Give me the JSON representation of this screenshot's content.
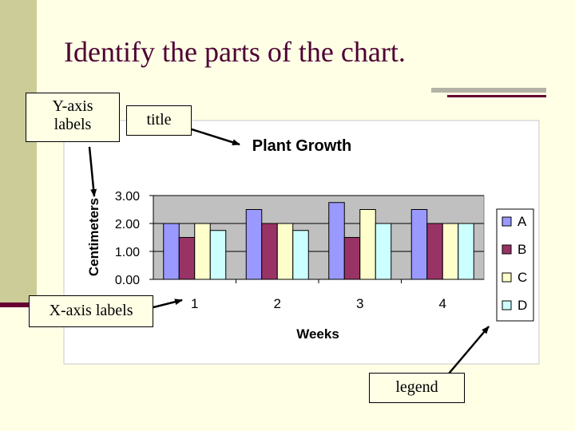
{
  "slide": {
    "title": "Identify the parts of the chart.",
    "callouts": {
      "y_axis": [
        "Y-axis",
        "labels"
      ],
      "title": "title",
      "x_axis": "X-axis labels",
      "legend": "legend"
    }
  },
  "colors": {
    "background": "#ffffe6",
    "plot_area": "#c0c0c0",
    "series": [
      "#9999ff",
      "#993366",
      "#ffffcc",
      "#ccffff"
    ]
  },
  "chart_data": {
    "type": "bar",
    "title": "Plant Growth",
    "xlabel": "Weeks",
    "ylabel": "Centimeters",
    "categories": [
      "1",
      "2",
      "3",
      "4"
    ],
    "yticks": [
      "0.00",
      "1.00",
      "2.00",
      "3.00"
    ],
    "ylim": [
      0,
      3
    ],
    "grid": true,
    "legend_position": "right",
    "series": [
      {
        "name": "A",
        "values": [
          2.0,
          2.5,
          2.75,
          2.5
        ]
      },
      {
        "name": "B",
        "values": [
          1.5,
          2.0,
          1.5,
          2.0
        ]
      },
      {
        "name": "C",
        "values": [
          2.0,
          2.0,
          2.5,
          2.0
        ]
      },
      {
        "name": "D",
        "values": [
          1.75,
          1.75,
          2.0,
          2.0
        ]
      }
    ]
  }
}
